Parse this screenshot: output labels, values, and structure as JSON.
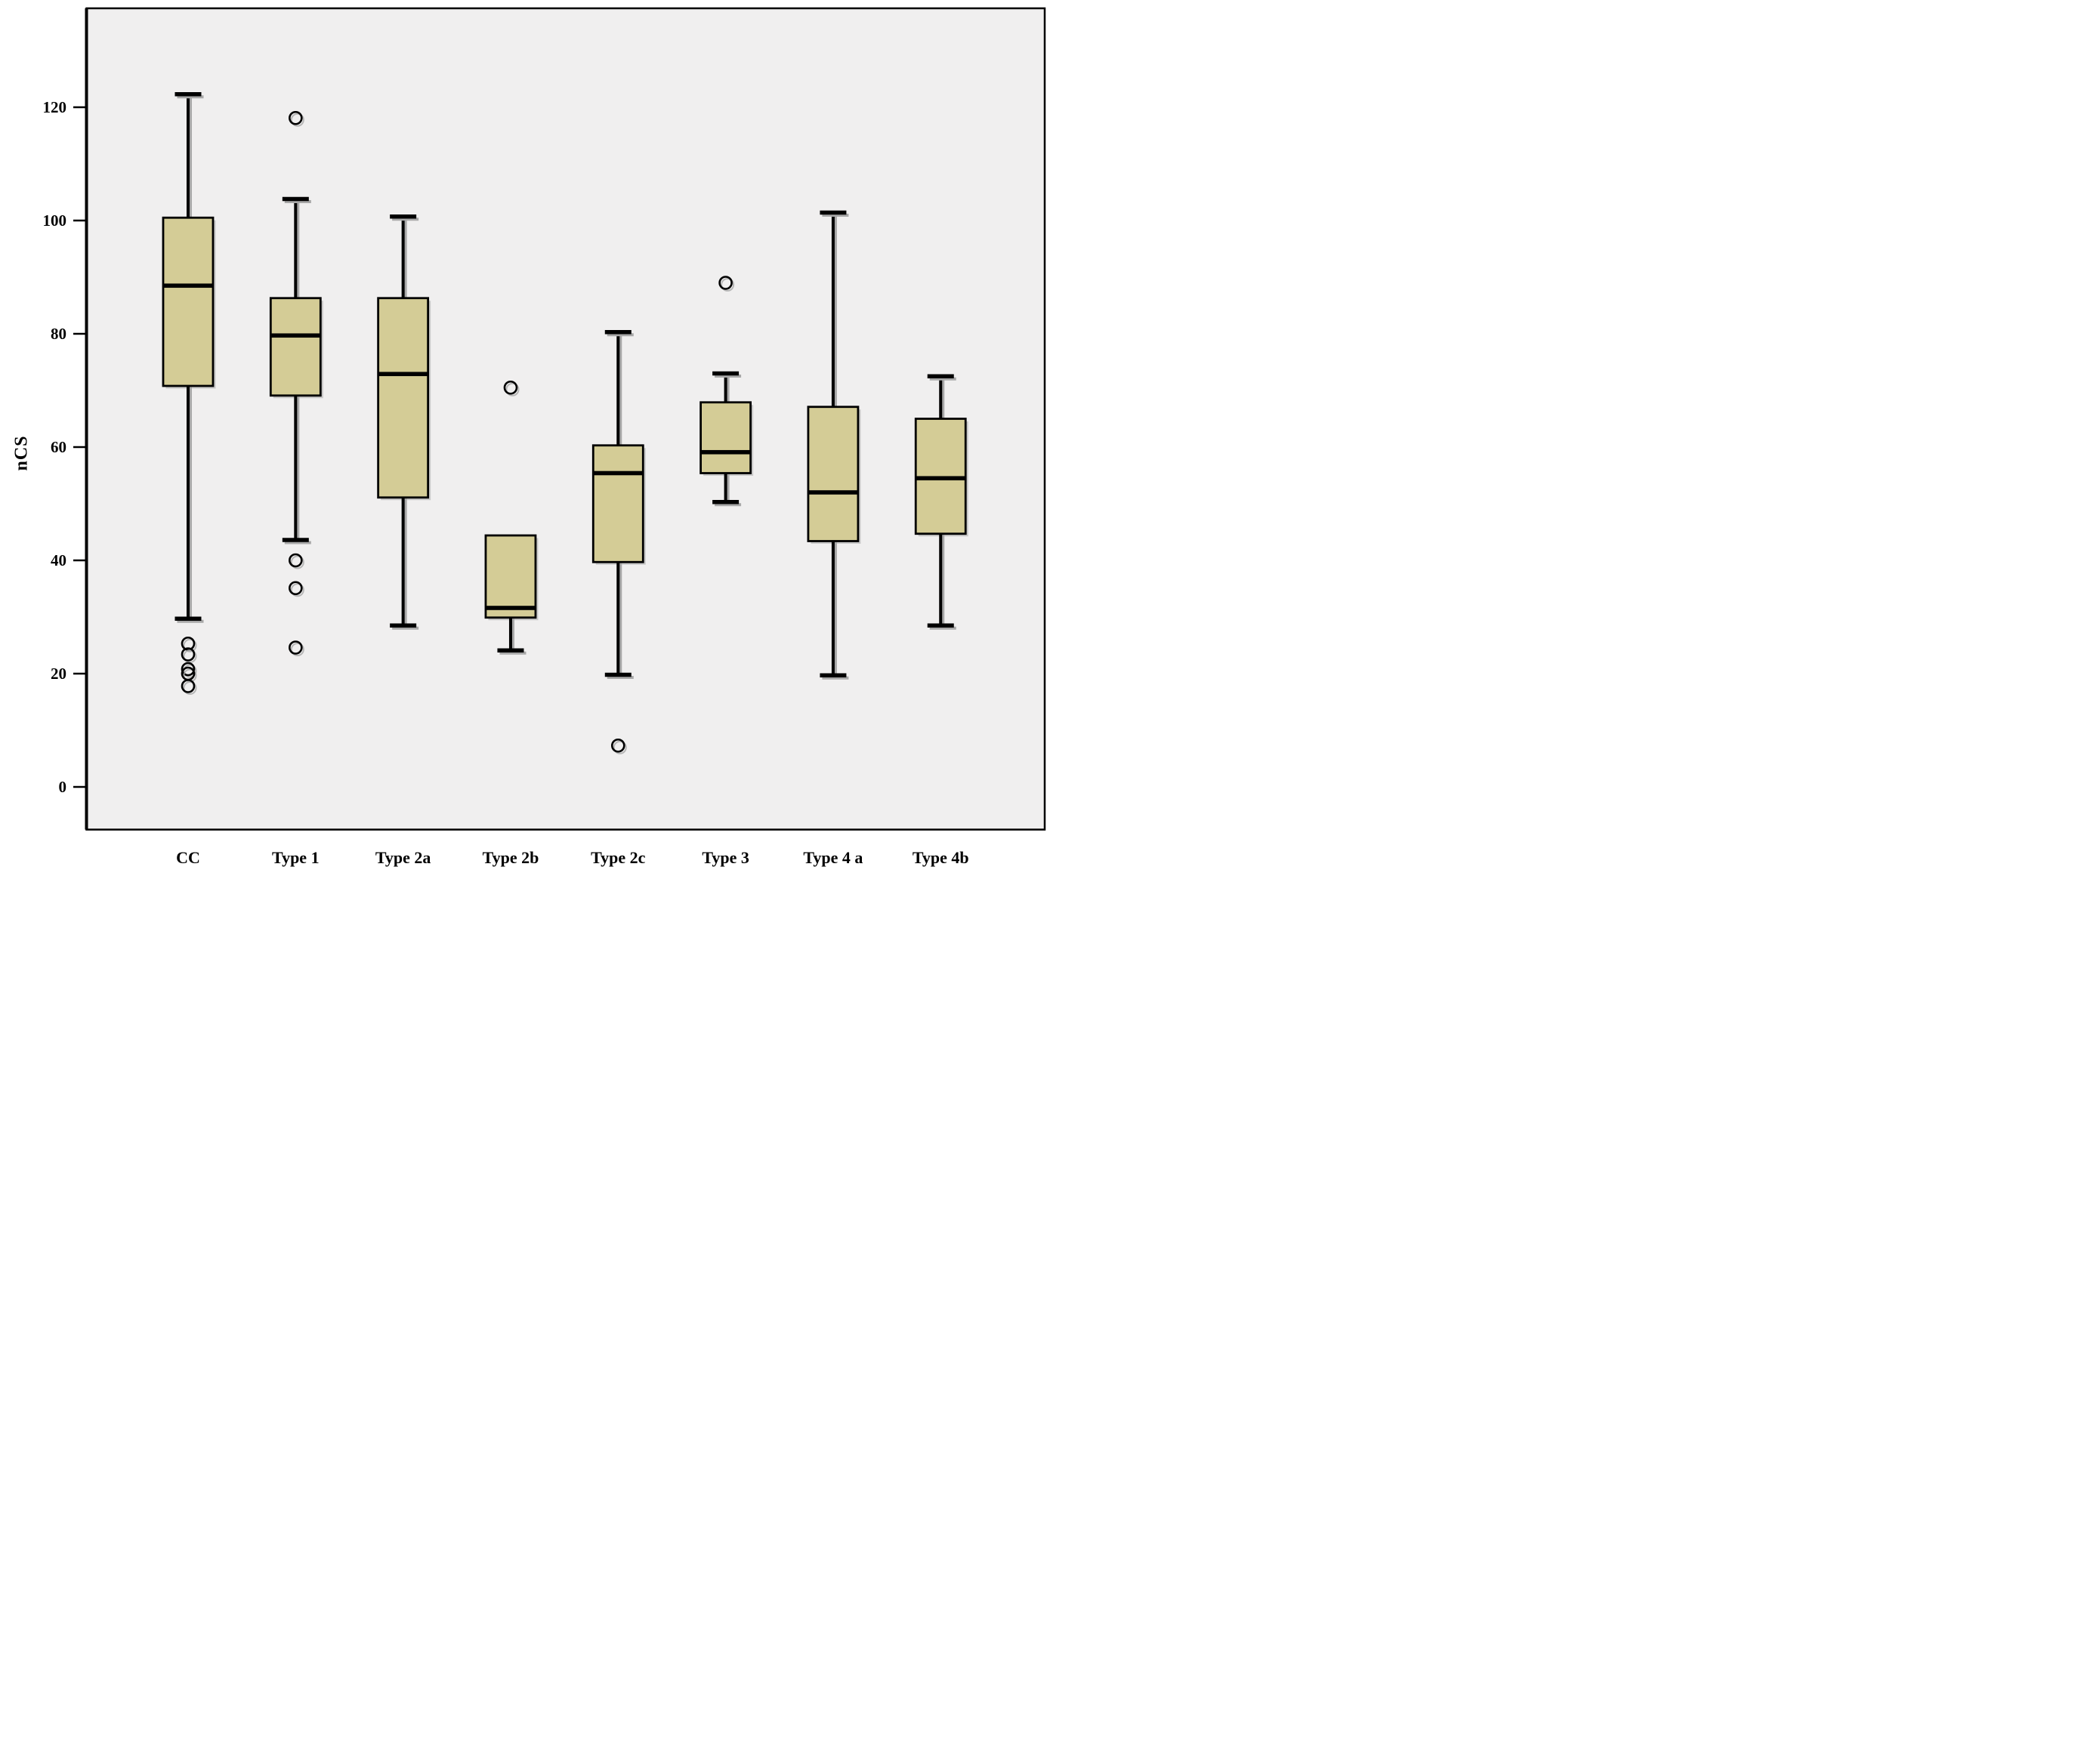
{
  "chart_data": {
    "type": "boxplot",
    "title": "",
    "xlabel": "",
    "ylabel": "nCS",
    "y_ticks": [
      0,
      20,
      40,
      60,
      80,
      100,
      120
    ],
    "ylim": [
      -7.5,
      137.5
    ],
    "grid": false,
    "legend": "none",
    "categories": [
      "CC",
      "Type 1",
      "Type 2a",
      "Type 2b",
      "Type 2c",
      "Type 3",
      "Type 4 a",
      "Type 4b"
    ],
    "boxes": [
      {
        "label": "CC",
        "whisker_low": 29.7,
        "q1": 70.8,
        "median": 88.5,
        "q3": 100.5,
        "whisker_high": 122.3,
        "outliers": [
          25.3,
          23.4,
          20.8,
          20.0,
          17.8
        ]
      },
      {
        "label": "Type 1",
        "whisker_low": 43.6,
        "q1": 69.1,
        "median": 79.7,
        "q3": 86.3,
        "whisker_high": 103.8,
        "outliers": [
          118.1,
          40.0,
          35.1,
          24.6
        ]
      },
      {
        "label": "Type 2a",
        "whisker_low": 28.5,
        "q1": 51.1,
        "median": 72.9,
        "q3": 86.3,
        "whisker_high": 100.7,
        "outliers": []
      },
      {
        "label": "Type 2b",
        "whisker_low": 24.1,
        "q1": 29.9,
        "median": 31.6,
        "q3": 44.4,
        "whisker_high": 44.4,
        "outliers": [
          70.5
        ]
      },
      {
        "label": "Type 2c",
        "whisker_low": 19.8,
        "q1": 39.7,
        "median": 55.4,
        "q3": 60.3,
        "whisker_high": 80.3,
        "outliers": [
          7.3
        ]
      },
      {
        "label": "Type 3",
        "whisker_low": 50.3,
        "q1": 55.4,
        "median": 59.1,
        "q3": 67.9,
        "whisker_high": 73.0,
        "outliers": [
          89.0
        ]
      },
      {
        "label": "Type 4 a",
        "whisker_low": 19.7,
        "q1": 43.4,
        "median": 52.0,
        "q3": 67.1,
        "whisker_high": 101.4,
        "outliers": []
      },
      {
        "label": "Type 4b",
        "whisker_low": 28.5,
        "q1": 44.7,
        "median": 54.5,
        "q3": 65.0,
        "whisker_high": 72.5,
        "outliers": []
      }
    ],
    "colors": {
      "box_fill": "#d4cc96",
      "line": "#000000",
      "plot_bg": "#f0efef",
      "shadow": "#a8a8a8",
      "page_bg": "#ffffff"
    }
  }
}
